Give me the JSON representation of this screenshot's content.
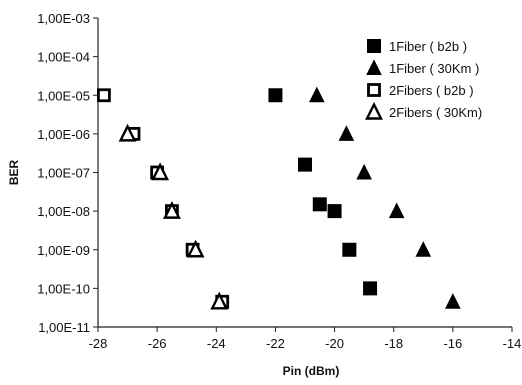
{
  "chart_data": {
    "type": "scatter",
    "title": "",
    "xlabel": "Pin (dBm)",
    "ylabel": "BER",
    "xlim": [
      -28,
      -14
    ],
    "ylim": [
      1e-11,
      0.001
    ],
    "y_scale": "log",
    "x_ticks": [
      "-28",
      "-26",
      "-24",
      "-22",
      "-20",
      "-18",
      "-16",
      "-14"
    ],
    "y_ticks": [
      "1,00E-11",
      "1,00E-10",
      "1,00E-09",
      "1,00E-08",
      "1,00E-07",
      "1,00E-06",
      "1,00E-05",
      "1,00E-04",
      "1,00E-03"
    ],
    "grid": false,
    "legend_position": "top-right",
    "series": [
      {
        "name": "1Fiber ( b2b )",
        "marker": "filled-square",
        "points": [
          [
            -22,
            1e-05
          ],
          [
            -21,
            1.6e-07
          ],
          [
            -20.5,
            1.5e-08
          ],
          [
            -20,
            1e-08
          ],
          [
            -19.5,
            1e-09
          ],
          [
            -18.8,
            1e-10
          ]
        ]
      },
      {
        "name": "1Fiber ( 30Km )",
        "marker": "filled-triangle",
        "points": [
          [
            -20.6,
            1e-05
          ],
          [
            -19.6,
            1e-06
          ],
          [
            -19,
            1e-07
          ],
          [
            -17.9,
            1e-08
          ],
          [
            -17,
            1e-09
          ],
          [
            -16,
            4.5e-11
          ]
        ]
      },
      {
        "name": "2Fibers ( b2b )",
        "marker": "open-square",
        "points": [
          [
            -27.8,
            1e-05
          ],
          [
            -26.8,
            1e-06
          ],
          [
            -26,
            1e-07
          ],
          [
            -25.5,
            1e-08
          ],
          [
            -24.8,
            1e-09
          ],
          [
            -23.8,
            4.5e-11
          ]
        ]
      },
      {
        "name": "2Fibers ( 30Km)",
        "marker": "open-triangle",
        "points": [
          [
            -27,
            1e-06
          ],
          [
            -25.9,
            1e-07
          ],
          [
            -25.5,
            1e-08
          ],
          [
            -24.7,
            1e-09
          ],
          [
            -23.9,
            4.5e-11
          ]
        ]
      }
    ]
  }
}
